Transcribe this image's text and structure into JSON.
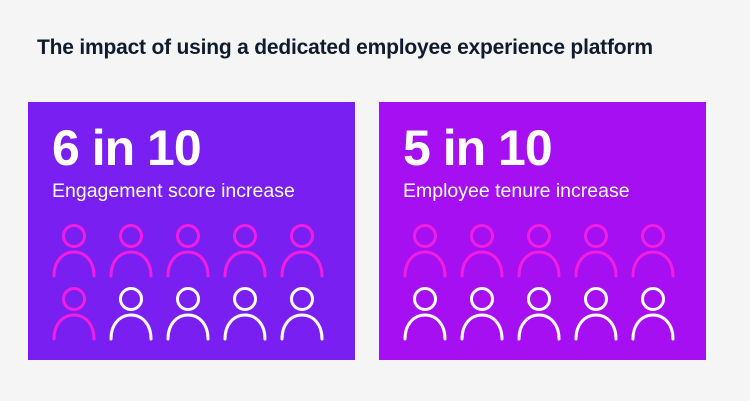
{
  "title": "The impact of using a dedicated employee experience platform",
  "colors": {
    "background": "#f5f5f5",
    "title_text": "#101b2e",
    "highlight_icon": "#f01ee0",
    "neutral_icon": "#ffffff"
  },
  "cards": [
    {
      "stat": "6 in 10",
      "label": "Engagement score increase",
      "highlighted": 6,
      "total": 10,
      "background": "#7a1ff2",
      "icon": "person-icon"
    },
    {
      "stat": "5 in 10",
      "label": "Employee tenure increase",
      "highlighted": 5,
      "total": 10,
      "background": "#a60ff2",
      "icon": "person-icon"
    }
  ]
}
